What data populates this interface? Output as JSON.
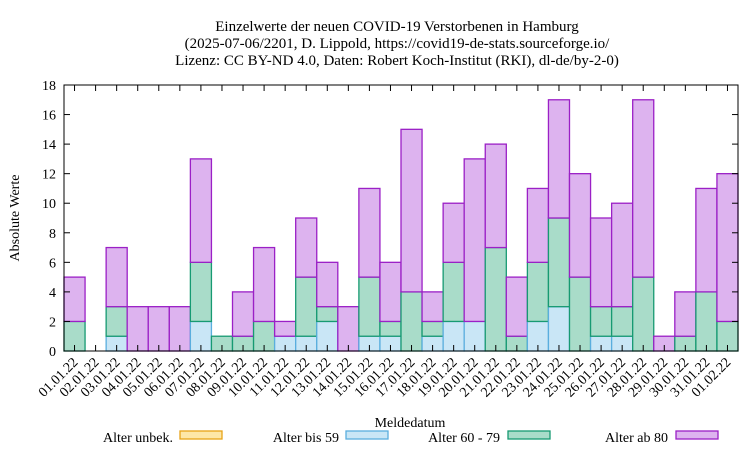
{
  "chart_data": {
    "type": "bar",
    "stacked": true,
    "title": [
      "Einzelwerte der neuen COVID-19 Verstorbenen in Hamburg",
      "(2025-07-06/2201, D. Lippold, https://covid19-de-stats.sourceforge.io/",
      "Lizenz: CC BY-ND 4.0, Daten: Robert Koch-Institut (RKI), dl-de/by-2-0)"
    ],
    "xlabel": "Meldedatum",
    "ylabel": "Absolute Werte",
    "ylim": [
      0,
      18
    ],
    "yticks": [
      0,
      2,
      4,
      6,
      8,
      10,
      12,
      14,
      16,
      18
    ],
    "grid": false,
    "legend_position": "bottom",
    "categories": [
      "01.01.22",
      "02.01.22",
      "03.01.22",
      "04.01.22",
      "05.01.22",
      "06.01.22",
      "07.01.22",
      "08.01.22",
      "09.01.22",
      "10.01.22",
      "11.01.22",
      "12.01.22",
      "13.01.22",
      "14.01.22",
      "15.01.22",
      "16.01.22",
      "17.01.22",
      "18.01.22",
      "19.01.22",
      "20.01.22",
      "21.01.22",
      "22.01.22",
      "23.01.22",
      "24.01.22",
      "25.01.22",
      "26.01.22",
      "27.01.22",
      "28.01.22",
      "29.01.22",
      "30.01.22",
      "31.01.22",
      "01.02.22"
    ],
    "series": [
      {
        "name": "Alter unbek.",
        "fill": "#fde7a8",
        "stroke": "#e8a317",
        "values": [
          0,
          0,
          0,
          0,
          0,
          0,
          0,
          0,
          0,
          0,
          0,
          0,
          0,
          0,
          0,
          0,
          0,
          0,
          0,
          0,
          0,
          0,
          0,
          0,
          0,
          0,
          0,
          0,
          0,
          0,
          0,
          0
        ]
      },
      {
        "name": "Alter bis 59",
        "fill": "#c9e6f6",
        "stroke": "#5aaede",
        "values": [
          0,
          0,
          1,
          0,
          0,
          0,
          2,
          0,
          0,
          0,
          1,
          1,
          2,
          0,
          1,
          1,
          0,
          1,
          2,
          2,
          0,
          0,
          2,
          3,
          0,
          1,
          1,
          0,
          0,
          0,
          0,
          0
        ]
      },
      {
        "name": "Alter 60 - 79",
        "fill": "#a9dcc9",
        "stroke": "#179a72",
        "values": [
          2,
          0,
          2,
          0,
          0,
          0,
          4,
          1,
          1,
          2,
          0,
          4,
          1,
          0,
          4,
          1,
          4,
          1,
          4,
          0,
          7,
          1,
          4,
          6,
          5,
          2,
          2,
          5,
          0,
          1,
          4,
          2
        ]
      },
      {
        "name": "Alter ab 80",
        "fill": "#ddb3ef",
        "stroke": "#9b20c6",
        "values": [
          3,
          0,
          4,
          3,
          3,
          3,
          7,
          0,
          3,
          5,
          1,
          4,
          3,
          3,
          6,
          4,
          11,
          2,
          4,
          11,
          7,
          4,
          5,
          8,
          7,
          6,
          7,
          12,
          1,
          3,
          7,
          10
        ]
      }
    ]
  }
}
